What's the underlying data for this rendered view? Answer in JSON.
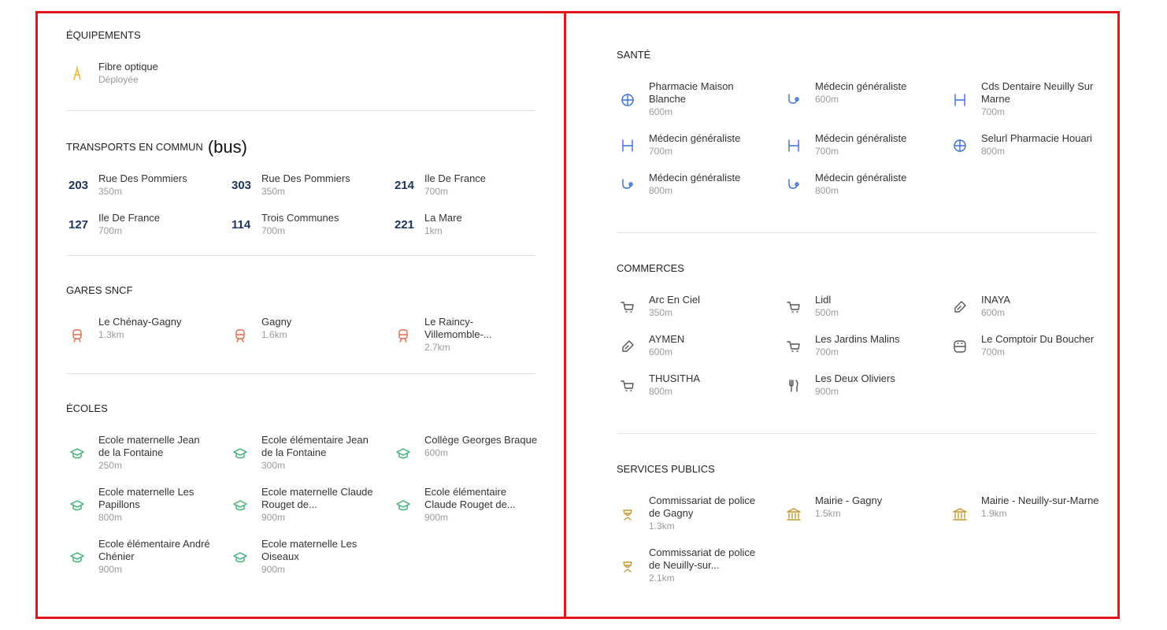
{
  "left": {
    "sections": [
      {
        "title": "ÉQUIPEMENTS",
        "items": [
          {
            "name": "Fibre optique",
            "detail": "Déployée"
          }
        ]
      },
      {
        "title": "TRANSPORTS EN COMMUN",
        "note": "(bus)",
        "items": [
          {
            "line": 203,
            "name": "Rue Des Pommiers",
            "detail": "350m"
          },
          {
            "line": 303,
            "name": "Rue Des Pommiers",
            "detail": "350m"
          },
          {
            "line": 214,
            "name": "Ile De France",
            "detail": "700m"
          },
          {
            "line": 127,
            "name": "Ile De France",
            "detail": "700m"
          },
          {
            "line": 114,
            "name": "Trois Communes",
            "detail": "700m"
          },
          {
            "line": 221,
            "name": "La Mare",
            "detail": "1km"
          }
        ]
      },
      {
        "title": "GARES SNCF",
        "items": [
          {
            "name": "Le Chénay-Gagny",
            "detail": "1.3km"
          },
          {
            "name": "Gagny",
            "detail": "1.6km"
          },
          {
            "name": "Le Raincy-Villemomble-...",
            "detail": "2.7km"
          }
        ]
      },
      {
        "title": "ÉCOLES",
        "items": [
          {
            "name": "Ecole maternelle Jean de la Fontaine",
            "detail": "250m"
          },
          {
            "name": "Ecole élémentaire Jean de la Fontaine",
            "detail": "300m"
          },
          {
            "name": "Collège Georges Braque",
            "detail": "600m"
          },
          {
            "name": "Ecole maternelle Les Papillons",
            "detail": "800m"
          },
          {
            "name": "Ecole maternelle Claude Rouget de...",
            "detail": "900m"
          },
          {
            "name": "Ecole élémentaire Claude Rouget de...",
            "detail": "900m"
          },
          {
            "name": "Ecole élémentaire André Chénier",
            "detail": "900m"
          },
          {
            "name": "Ecole maternelle Les Oiseaux",
            "detail": "900m"
          }
        ]
      }
    ]
  },
  "right": {
    "sections": [
      {
        "title": "SANTÉ",
        "items": [
          {
            "name": "Pharmacie Maison Blanche",
            "detail": "600m"
          },
          {
            "name": "Médecin généraliste",
            "detail": "600m"
          },
          {
            "name": "Cds Dentaire Neuilly Sur Marne",
            "detail": "700m"
          },
          {
            "name": "Médecin généraliste",
            "detail": "700m"
          },
          {
            "name": "Médecin généraliste",
            "detail": "700m"
          },
          {
            "name": "Selurl Pharmacie Houari",
            "detail": "800m"
          },
          {
            "name": "Médecin généraliste",
            "detail": "800m"
          },
          {
            "name": "Médecin généraliste",
            "detail": "800m"
          }
        ]
      },
      {
        "title": "COMMERCES",
        "items": [
          {
            "name": "Arc En Ciel",
            "detail": "350m"
          },
          {
            "name": "Lidl",
            "detail": "500m"
          },
          {
            "name": "INAYA",
            "detail": "600m"
          },
          {
            "name": "AYMEN",
            "detail": "600m"
          },
          {
            "name": "Les Jardins Malins",
            "detail": "700m"
          },
          {
            "name": "Le Comptoir Du Boucher",
            "detail": "700m"
          },
          {
            "name": "THUSITHA",
            "detail": "800m"
          },
          {
            "name": "Les Deux Oliviers",
            "detail": "900m"
          }
        ]
      },
      {
        "title": "SERVICES PUBLICS",
        "items": [
          {
            "name": "Commissariat de police de Gagny",
            "detail": "1.3km"
          },
          {
            "name": "Mairie - Gagny",
            "detail": "1.5km"
          },
          {
            "name": "Mairie - Neuilly-sur-Marne",
            "detail": "1.9km"
          },
          {
            "name": "Commissariat de police de Neuilly-sur...",
            "detail": "2.1km"
          }
        ]
      }
    ]
  }
}
